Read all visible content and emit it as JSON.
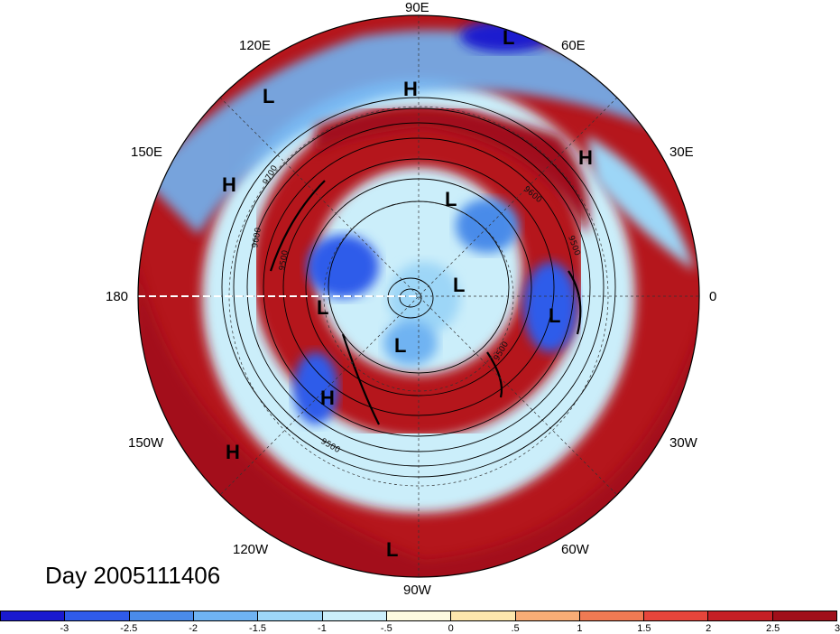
{
  "longitude_labels": [
    {
      "id": "90e",
      "text": "90E"
    },
    {
      "id": "120e",
      "text": "120E"
    },
    {
      "id": "60e",
      "text": "60E"
    },
    {
      "id": "150e",
      "text": "150E"
    },
    {
      "id": "30e",
      "text": "30E"
    },
    {
      "id": "180",
      "text": "180"
    },
    {
      "id": "0",
      "text": "0"
    },
    {
      "id": "150w",
      "text": "150W"
    },
    {
      "id": "30w",
      "text": "30W"
    },
    {
      "id": "120w",
      "text": "120W"
    },
    {
      "id": "60w",
      "text": "60W"
    },
    {
      "id": "90w",
      "text": "90W"
    }
  ],
  "pressure_markers": [
    {
      "id": "l1",
      "text": "L"
    },
    {
      "id": "l2",
      "text": "L"
    },
    {
      "id": "h1",
      "text": "H"
    },
    {
      "id": "h2",
      "text": "H"
    },
    {
      "id": "h3",
      "text": "H"
    },
    {
      "id": "l3",
      "text": "L"
    },
    {
      "id": "l4",
      "text": "L"
    },
    {
      "id": "l5",
      "text": "L"
    },
    {
      "id": "l6",
      "text": "L"
    },
    {
      "id": "l7",
      "text": "L"
    },
    {
      "id": "h4",
      "text": "H"
    },
    {
      "id": "h5",
      "text": "H"
    },
    {
      "id": "l8",
      "text": "L"
    }
  ],
  "contour_labels": [
    "9700",
    "9600",
    "9500",
    "9500",
    "9600",
    "9500",
    "9500"
  ],
  "title": "Day 2005111406",
  "colorbar": {
    "colors": [
      "#1a1acf",
      "#2f5bea",
      "#4a8be9",
      "#6fb3f2",
      "#9dd6f7",
      "#cbeefa",
      "#fdfbe0",
      "#fde7ad",
      "#f8ad76",
      "#f07a53",
      "#e6453b",
      "#c51f25",
      "#a00f1a"
    ],
    "ticks": [
      "-3",
      "-2.5",
      "-2",
      "-1.5",
      "-1",
      "-.5",
      "0",
      ".5",
      "1",
      "1.5",
      "2",
      "2.5",
      "3"
    ]
  }
}
